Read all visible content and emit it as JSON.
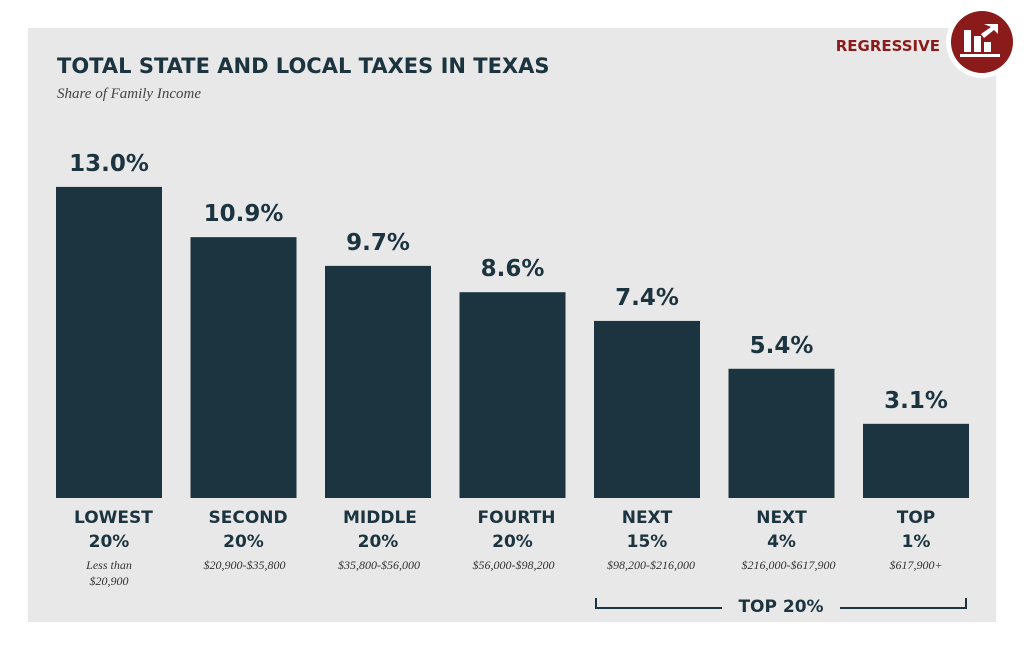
{
  "chart_data": {
    "type": "bar",
    "title": "TOTAL STATE AND LOCAL TAXES IN TEXAS",
    "subtitle": "Share of Family Income",
    "badge": "REGRESSIVE",
    "categories": [
      "LOWEST 20%",
      "SECOND 20%",
      "MIDDLE 20%",
      "FOURTH 20%",
      "NEXT 15%",
      "NEXT 4%",
      "TOP 1%"
    ],
    "income_ranges": [
      "Less than $20,900",
      "$20,900-$35,800",
      "$35,800-$56,000",
      "$56,000-$98,200",
      "$98,200-$216,000",
      "$216,000-$617,900",
      "$617,900+"
    ],
    "values": [
      13.0,
      10.9,
      9.7,
      8.6,
      7.4,
      5.4,
      3.1
    ],
    "value_labels": [
      "13.0%",
      "10.9%",
      "9.7%",
      "8.6%",
      "7.4%",
      "5.4%",
      "3.1%"
    ],
    "color": "#1c3440",
    "annotation": "TOP 20%"
  }
}
